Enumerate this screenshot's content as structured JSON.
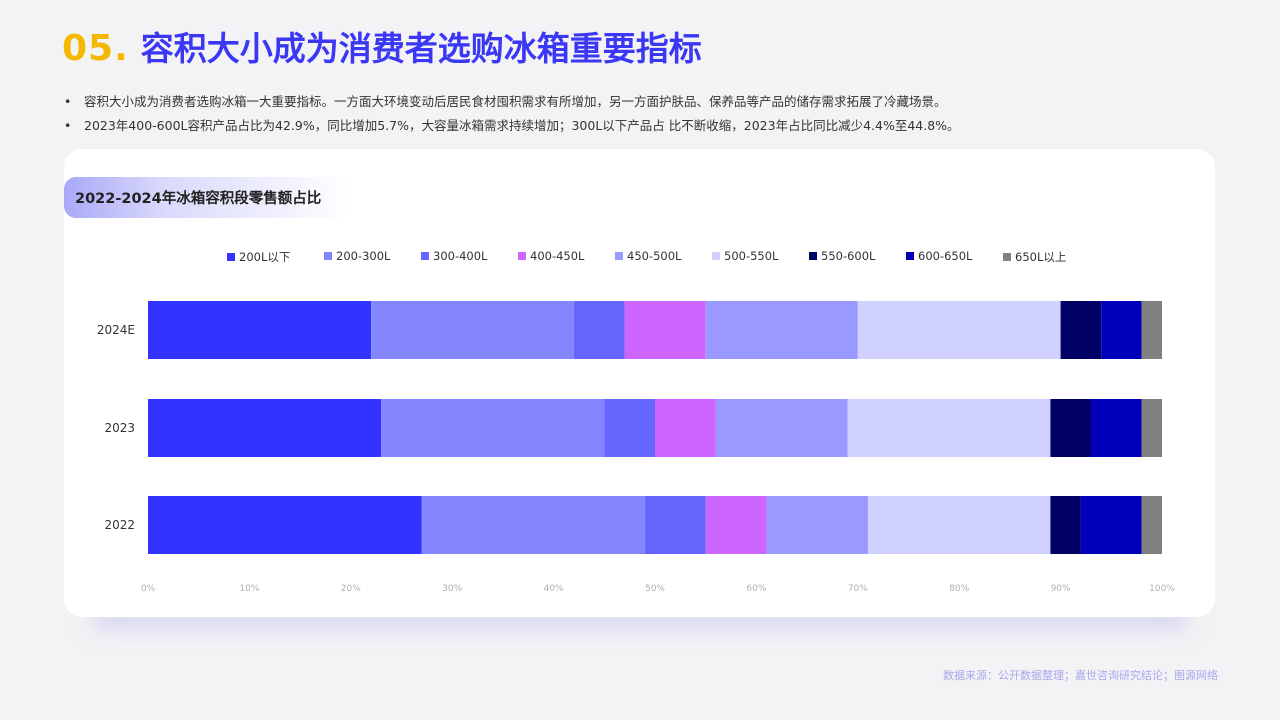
{
  "header": {
    "number": "05.",
    "title": "容积大小成为消费者选购冰箱重要指标"
  },
  "bullets": [
    "容积大小成为消费者选购冰箱一大重要指标。一方面大环境变动后居民食材囤积需求有所增加，另一方面护肤品、保养品等产品的储存需求拓展了冷藏场景。",
    "2023年400-600L容积产品占比为42.9%，同比增加5.7%，大容量冰箱需求持续增加；300L以下产品占 比不断收缩，2023年占比同比减少4.4%至44.8%。"
  ],
  "source": "数据来源：公开数据整理；嘉世咨询研究结论；图源网络",
  "chart_data": {
    "type": "bar",
    "orientation": "horizontal",
    "stacked": true,
    "title": "2022-2024年冰箱容积段零售额占比",
    "categories": [
      "2024E",
      "2023",
      "2022"
    ],
    "xlim": [
      0,
      100
    ],
    "xticks": [
      "0%",
      "10%",
      "20%",
      "30%",
      "40%",
      "50%",
      "60%",
      "70%",
      "80%",
      "90%",
      "100%"
    ],
    "legend_position": "top",
    "grid": false,
    "series": [
      {
        "name": "200L以下",
        "color": "#3333ff",
        "values": [
          22,
          23,
          27
        ]
      },
      {
        "name": "200-300L",
        "color": "#8585ff",
        "values": [
          20,
          22,
          22
        ]
      },
      {
        "name": "300-400L",
        "color": "#6666ff",
        "values": [
          5,
          5,
          6
        ]
      },
      {
        "name": "400-450L",
        "color": "#cc66ff",
        "values": [
          8,
          6,
          6
        ]
      },
      {
        "name": "450-500L",
        "color": "#9999ff",
        "values": [
          15,
          13,
          10
        ]
      },
      {
        "name": "500-550L",
        "color": "#d1d1ff",
        "values": [
          20,
          20,
          18
        ]
      },
      {
        "name": "550-600L",
        "color": "#000066",
        "values": [
          4,
          4,
          3
        ]
      },
      {
        "name": "600-650L",
        "color": "#0000bb",
        "values": [
          4,
          5,
          6
        ]
      },
      {
        "name": "650L以上",
        "color": "#808080",
        "values": [
          2,
          2,
          2
        ]
      }
    ]
  }
}
